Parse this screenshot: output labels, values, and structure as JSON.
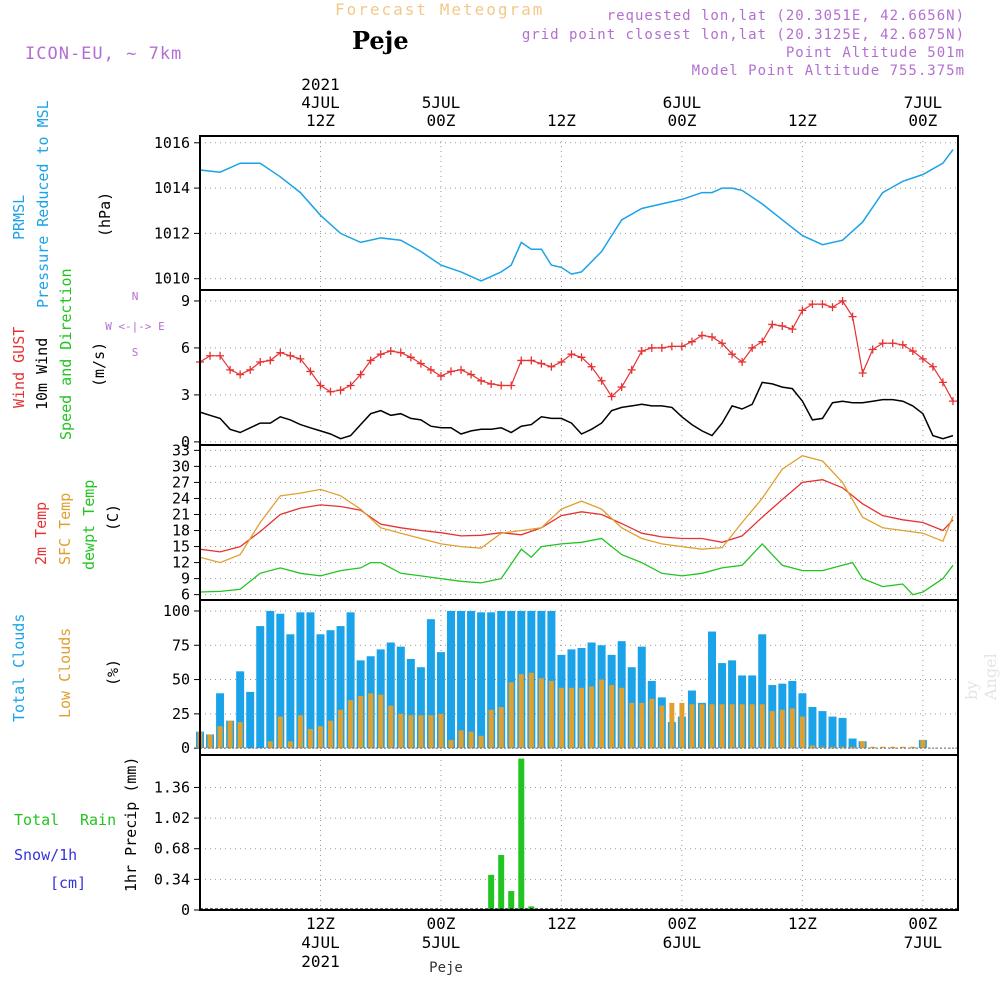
{
  "header": {
    "title": "Forecast Meteogram",
    "place": "Peje",
    "model": "ICON-EU, ~ 7km",
    "requested": "requested lon,lat (20.3051E, 42.6656N)",
    "grid_point": "grid point closest lon,lat (20.3125E, 42.6875N)",
    "point_alt": "Point Altitude 501m",
    "model_alt": "Model Point Altitude 755.375m"
  },
  "footer": {
    "place": "Peje",
    "watermark": "by Angel"
  },
  "time_axis": {
    "ticks": [
      {
        "h": 12,
        "l1": "12Z",
        "l2": "4JUL",
        "l3": "2021"
      },
      {
        "h": 24,
        "l1": "00Z",
        "l2": "5JUL",
        "l3": ""
      },
      {
        "h": 36,
        "l1": "12Z",
        "l2": "",
        "l3": ""
      },
      {
        "h": 48,
        "l1": "00Z",
        "l2": "6JUL",
        "l3": ""
      },
      {
        "h": 60,
        "l1": "12Z",
        "l2": "",
        "l3": ""
      },
      {
        "h": 72,
        "l1": "00Z",
        "l2": "7JUL",
        "l3": ""
      }
    ],
    "top_label_hours": [
      12,
      24,
      48,
      72
    ],
    "bottom_label_hours": [
      12,
      24,
      48,
      72
    ]
  },
  "panels": {
    "pressure": {
      "label1": "PRMSL",
      "label2": "Pressure Reduced to MSL",
      "unit": "(hPa)",
      "color": "#1aa3e8"
    },
    "wind": {
      "label1": "Wind GUST",
      "label2": "10m Wind",
      "label3": "Speed and Direction",
      "unit": "(m/s)",
      "compass": [
        "N",
        "W <-|-> E",
        "S"
      ],
      "gust_color": "#e63232",
      "wind_color": "#000000"
    },
    "temp": {
      "label1": "2m Temp",
      "label2": "SFC Temp",
      "label3": "dewpt Temp",
      "unit": "(C)",
      "t2m_color": "#e63232",
      "sfc_color": "#e0a030",
      "dew_color": "#22c422"
    },
    "clouds": {
      "label1": "Total Clouds",
      "label2": "Low Clouds",
      "unit": "(%)",
      "total_color": "#1aa3e8",
      "low_color": "#e0a030"
    },
    "precip": {
      "label1": "Total",
      "label2": "Rain",
      "label3": "Snow/1h",
      "label4": "[cm]",
      "unit": "1hr Precip (mm)",
      "rain_color": "#22c422",
      "snow_color": "#3333dd"
    }
  },
  "chart_data": [
    {
      "type": "line",
      "name": "pressure",
      "ylim": [
        1009.5,
        1016.3
      ],
      "yticks": [
        1010,
        1012,
        1014,
        1016
      ],
      "series": [
        {
          "name": "PRMSL",
          "x": [
            0,
            2,
            4,
            6,
            8,
            10,
            12,
            14,
            16,
            18,
            20,
            22,
            24,
            26,
            28,
            29,
            30,
            31,
            32,
            33,
            34,
            35,
            36,
            37,
            38,
            40,
            42,
            44,
            46,
            48,
            50,
            51,
            52,
            53,
            54,
            56,
            58,
            60,
            62,
            64,
            66,
            68,
            70,
            72,
            74,
            75
          ],
          "values": [
            1014.8,
            1014.7,
            1015.1,
            1015.1,
            1014.5,
            1013.8,
            1012.8,
            1012.0,
            1011.6,
            1011.8,
            1011.7,
            1011.2,
            1010.6,
            1010.3,
            1009.9,
            1010.1,
            1010.3,
            1010.6,
            1011.6,
            1011.3,
            1011.3,
            1010.6,
            1010.5,
            1010.2,
            1010.3,
            1011.2,
            1012.6,
            1013.1,
            1013.3,
            1013.5,
            1013.8,
            1013.8,
            1014.0,
            1014.0,
            1013.9,
            1013.3,
            1012.6,
            1011.9,
            1011.5,
            1011.7,
            1012.5,
            1013.8,
            1014.3,
            1014.6,
            1015.1,
            1015.7
          ]
        }
      ]
    },
    {
      "type": "line",
      "name": "wind",
      "ylim": [
        -0.2,
        9.7
      ],
      "yticks": [
        0,
        3,
        6,
        9
      ],
      "series": [
        {
          "name": "Wind GUST",
          "x": [
            0,
            1,
            2,
            3,
            4,
            5,
            6,
            7,
            8,
            9,
            10,
            11,
            12,
            13,
            14,
            15,
            16,
            17,
            18,
            19,
            20,
            21,
            22,
            23,
            24,
            25,
            26,
            27,
            28,
            29,
            30,
            31,
            32,
            33,
            34,
            35,
            36,
            37,
            38,
            39,
            40,
            41,
            42,
            43,
            44,
            45,
            46,
            47,
            48,
            49,
            50,
            51,
            52,
            53,
            54,
            55,
            56,
            57,
            58,
            59,
            60,
            61,
            62,
            63,
            64,
            65,
            66,
            67,
            68,
            69,
            70,
            71,
            72,
            73,
            74,
            75
          ],
          "values": [
            5.1,
            5.5,
            5.5,
            4.6,
            4.3,
            4.6,
            5.1,
            5.2,
            5.7,
            5.5,
            5.3,
            4.5,
            3.6,
            3.2,
            3.3,
            3.6,
            4.3,
            5.2,
            5.6,
            5.8,
            5.7,
            5.4,
            5.0,
            4.6,
            4.2,
            4.5,
            4.6,
            4.3,
            3.9,
            3.7,
            3.6,
            3.6,
            5.2,
            5.2,
            5.0,
            4.8,
            5.1,
            5.6,
            5.4,
            4.8,
            3.9,
            2.9,
            3.5,
            4.6,
            5.8,
            6.0,
            6.0,
            6.1,
            6.1,
            6.4,
            6.8,
            6.7,
            6.3,
            5.6,
            5.1,
            6.0,
            6.4,
            7.5,
            7.4,
            7.2,
            8.4,
            8.8,
            8.8,
            8.6,
            9.0,
            8.0,
            4.4,
            5.9,
            6.3,
            6.3,
            6.2,
            5.8,
            5.3,
            4.8,
            3.8,
            2.6
          ]
        },
        {
          "name": "10m Wind",
          "x": [
            0,
            1,
            2,
            3,
            4,
            5,
            6,
            7,
            8,
            9,
            10,
            11,
            12,
            13,
            14,
            15,
            16,
            17,
            18,
            19,
            20,
            21,
            22,
            23,
            24,
            25,
            26,
            27,
            28,
            29,
            30,
            31,
            32,
            33,
            34,
            35,
            36,
            37,
            38,
            39,
            40,
            41,
            42,
            43,
            44,
            45,
            46,
            47,
            48,
            49,
            50,
            51,
            52,
            53,
            54,
            55,
            56,
            57,
            58,
            59,
            60,
            61,
            62,
            63,
            64,
            65,
            66,
            67,
            68,
            69,
            70,
            71,
            72,
            73,
            74,
            75
          ],
          "values": [
            1.9,
            1.7,
            1.5,
            0.8,
            0.6,
            0.9,
            1.2,
            1.2,
            1.6,
            1.4,
            1.1,
            0.9,
            0.7,
            0.5,
            0.2,
            0.4,
            1.1,
            1.8,
            2.0,
            1.7,
            1.8,
            1.5,
            1.4,
            1.0,
            0.9,
            0.9,
            0.5,
            0.7,
            0.8,
            0.8,
            0.9,
            0.6,
            1.0,
            1.1,
            1.6,
            1.5,
            1.5,
            1.2,
            0.5,
            0.8,
            1.2,
            2.0,
            2.2,
            2.3,
            2.4,
            2.3,
            2.3,
            2.2,
            1.6,
            1.1,
            0.7,
            0.4,
            1.2,
            2.3,
            2.1,
            2.4,
            3.8,
            3.7,
            3.5,
            3.4,
            2.6,
            1.4,
            1.5,
            2.5,
            2.6,
            2.5,
            2.5,
            2.6,
            2.7,
            2.7,
            2.6,
            2.3,
            1.8,
            0.4,
            0.2,
            0.4
          ]
        }
      ]
    },
    {
      "type": "line",
      "name": "temperature",
      "ylim": [
        5,
        34
      ],
      "yticks": [
        6,
        9,
        12,
        15,
        18,
        21,
        24,
        27,
        30,
        33
      ],
      "series": [
        {
          "name": "2m Temp",
          "x": [
            0,
            2,
            4,
            6,
            8,
            10,
            12,
            14,
            16,
            18,
            20,
            22,
            24,
            26,
            28,
            30,
            32,
            34,
            36,
            38,
            40,
            42,
            44,
            46,
            48,
            50,
            52,
            54,
            56,
            58,
            60,
            62,
            64,
            66,
            68,
            70,
            72,
            74,
            75
          ],
          "values": [
            14.5,
            14.0,
            15.0,
            17.8,
            21.0,
            22.2,
            22.8,
            22.5,
            21.8,
            19.2,
            18.5,
            18.0,
            17.6,
            17.0,
            17.1,
            17.6,
            17.2,
            18.5,
            20.8,
            21.5,
            21.0,
            19.3,
            17.5,
            16.8,
            16.5,
            16.5,
            15.8,
            17.0,
            20.5,
            23.8,
            27.0,
            27.5,
            26.0,
            23.0,
            20.8,
            20.0,
            19.5,
            18.0,
            20.0
          ]
        },
        {
          "name": "SFC Temp",
          "x": [
            0,
            2,
            4,
            6,
            8,
            10,
            12,
            14,
            16,
            18,
            20,
            22,
            24,
            26,
            28,
            30,
            32,
            34,
            36,
            38,
            40,
            42,
            44,
            46,
            48,
            50,
            52,
            54,
            56,
            58,
            60,
            62,
            64,
            66,
            68,
            70,
            72,
            74,
            75
          ],
          "values": [
            13.0,
            12.0,
            13.5,
            19.5,
            24.5,
            25.0,
            25.7,
            24.5,
            22.0,
            18.5,
            17.5,
            16.5,
            15.5,
            15.0,
            14.7,
            17.5,
            18.0,
            18.5,
            22.0,
            23.5,
            22.0,
            18.5,
            16.5,
            15.5,
            15.0,
            14.5,
            14.8,
            19.5,
            24.0,
            29.5,
            32.0,
            31.0,
            27.0,
            20.5,
            18.5,
            18.0,
            17.5,
            16.0,
            20.7
          ]
        },
        {
          "name": "dewpt Temp",
          "x": [
            0,
            2,
            4,
            6,
            8,
            10,
            12,
            14,
            16,
            17,
            18,
            20,
            22,
            24,
            26,
            28,
            30,
            32,
            33,
            34,
            36,
            38,
            40,
            42,
            44,
            46,
            48,
            50,
            52,
            54,
            56,
            58,
            60,
            62,
            64,
            65,
            66,
            68,
            70,
            71,
            72,
            74,
            75
          ],
          "values": [
            6.5,
            6.6,
            7.0,
            10.0,
            11.0,
            10.0,
            9.5,
            10.5,
            11.0,
            12.0,
            12.0,
            10.0,
            9.5,
            9.0,
            8.5,
            8.2,
            9.0,
            14.5,
            13.0,
            15.0,
            15.5,
            15.8,
            16.5,
            13.5,
            12.0,
            10.0,
            9.5,
            10.0,
            11.0,
            11.5,
            15.5,
            11.5,
            10.5,
            10.5,
            11.5,
            12.0,
            9.0,
            7.5,
            8.0,
            6.0,
            6.5,
            9.0,
            11.5
          ]
        }
      ]
    },
    {
      "type": "bar",
      "name": "clouds",
      "ylim": [
        -5,
        108
      ],
      "yticks": [
        0,
        25,
        50,
        75,
        100
      ],
      "x": [
        0,
        1,
        2,
        3,
        4,
        5,
        6,
        7,
        8,
        9,
        10,
        11,
        12,
        13,
        14,
        15,
        16,
        17,
        18,
        19,
        20,
        21,
        22,
        23,
        24,
        25,
        26,
        27,
        28,
        29,
        30,
        31,
        32,
        33,
        34,
        35,
        36,
        37,
        38,
        39,
        40,
        41,
        42,
        43,
        44,
        45,
        46,
        47,
        48,
        49,
        50,
        51,
        52,
        53,
        54,
        55,
        56,
        57,
        58,
        59,
        60,
        61,
        62,
        63,
        64,
        65,
        66,
        67,
        68,
        69,
        70,
        71,
        72,
        73,
        74,
        75
      ],
      "series": [
        {
          "name": "Total Clouds",
          "values": [
            12,
            10,
            40,
            20,
            56,
            41,
            89,
            100,
            98,
            83,
            99,
            99,
            83,
            86,
            89,
            99,
            64,
            67,
            72,
            77,
            74,
            65,
            59,
            94,
            70,
            100,
            100,
            100,
            99,
            99,
            100,
            100,
            100,
            100,
            100,
            100,
            68,
            72,
            73,
            77,
            75,
            68,
            78,
            59,
            74,
            49,
            37,
            19,
            23,
            42,
            33,
            85,
            62,
            64,
            53,
            53,
            83,
            46,
            47,
            49,
            40,
            30,
            27,
            23,
            22,
            7,
            5,
            0,
            0,
            0,
            0,
            0,
            6,
            0,
            0,
            0
          ]
        },
        {
          "name": "Low Clouds",
          "values": [
            12,
            10,
            16,
            20,
            19,
            0,
            0,
            5,
            23,
            5,
            24,
            14,
            16,
            20,
            28,
            35,
            38,
            40,
            39,
            31,
            25,
            24,
            24,
            24,
            25,
            6,
            13,
            12,
            9,
            28,
            30,
            48,
            54,
            55,
            51,
            49,
            44,
            44,
            44,
            45,
            50,
            46,
            44,
            33,
            33,
            36,
            31,
            33,
            33,
            32,
            32,
            32,
            32,
            32,
            32,
            32,
            32,
            27,
            28,
            29,
            23,
            2,
            1,
            1,
            1,
            1,
            5,
            1,
            1,
            1,
            1,
            1,
            6,
            0,
            0,
            0
          ]
        }
      ]
    },
    {
      "type": "bar",
      "name": "precipitation",
      "ylim": [
        0,
        1.72
      ],
      "yticks": [
        0,
        0.34,
        0.68,
        1.02,
        1.36
      ],
      "x": [
        29,
        30,
        31,
        32,
        33
      ],
      "series": [
        {
          "name": "Total Rain",
          "values": [
            0.39,
            0.61,
            0.21,
            1.68,
            0.04
          ]
        }
      ]
    }
  ]
}
